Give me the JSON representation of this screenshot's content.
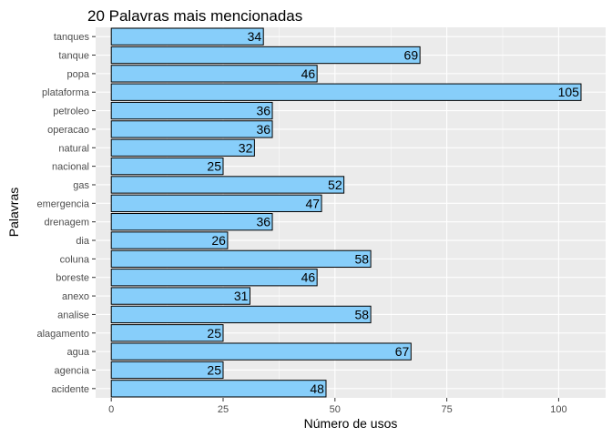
{
  "chart_data": {
    "type": "bar",
    "orientation": "horizontal",
    "title": "20 Palavras mais mencionadas",
    "xlabel": "Número de usos",
    "ylabel": "Palavras",
    "categories": [
      "tanques",
      "tanque",
      "popa",
      "plataforma",
      "petroleo",
      "operacao",
      "natural",
      "nacional",
      "gas",
      "emergencia",
      "drenagem",
      "dia",
      "coluna",
      "boreste",
      "anexo",
      "analise",
      "alagamento",
      "agua",
      "agencia",
      "acidente"
    ],
    "values": [
      34,
      69,
      46,
      105,
      36,
      36,
      32,
      25,
      52,
      47,
      36,
      26,
      58,
      46,
      31,
      58,
      25,
      67,
      25,
      48
    ],
    "xlim": [
      -3.5,
      110.5
    ],
    "xticks": [
      0,
      25,
      50,
      75,
      100
    ],
    "grid": true,
    "legend": "none",
    "colors": {
      "bar_fill": "#87CEFA",
      "bar_stroke": "#000000",
      "panel_bg": "#EBEBEB",
      "grid": "#FFFFFF"
    }
  }
}
